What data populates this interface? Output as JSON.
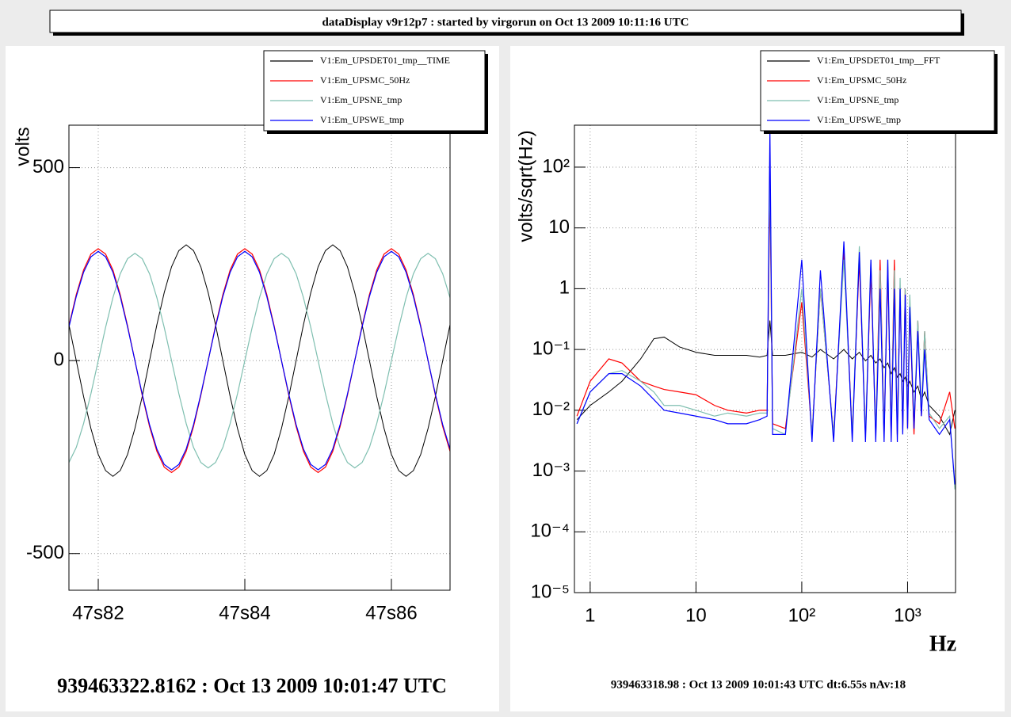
{
  "header": {
    "title": "dataDisplay v9r12p7 : started by virgorun on Oct 13 2009 10:11:16 UTC"
  },
  "chart_data": [
    {
      "type": "line",
      "ylabel": "volts",
      "footer": "939463322.8162 : Oct 13 2009 10:01:47 UTC",
      "xlim": [
        47.816,
        47.868
      ],
      "ylim": [
        -595,
        610
      ],
      "grid": true,
      "legend": "top-right",
      "xticks": [
        {
          "value": 47.82,
          "label": "47s82"
        },
        {
          "value": 47.84,
          "label": "47s84"
        },
        {
          "value": 47.86,
          "label": "47s86"
        }
      ],
      "yticks": [
        -500,
        0,
        500
      ],
      "x": [
        47.816,
        47.817,
        47.818,
        47.819,
        47.82,
        47.821,
        47.822,
        47.823,
        47.824,
        47.825,
        47.826,
        47.827,
        47.828,
        47.829,
        47.83,
        47.831,
        47.832,
        47.833,
        47.834,
        47.835,
        47.836,
        47.837,
        47.838,
        47.839,
        47.84,
        47.841,
        47.842,
        47.843,
        47.844,
        47.845,
        47.846,
        47.847,
        47.848,
        47.849,
        47.85,
        47.851,
        47.852,
        47.853,
        47.854,
        47.855,
        47.856,
        47.857,
        47.858,
        47.859,
        47.86,
        47.861,
        47.862,
        47.863,
        47.864,
        47.865,
        47.866,
        47.867,
        47.868
      ],
      "series": [
        {
          "name": "V1:Em_UPSDET01_tmp__TIME",
          "color": "#000000",
          "values": [
            93,
            0,
            -93,
            -176,
            -243,
            -285,
            -300,
            -285,
            -243,
            -176,
            -93,
            0,
            93,
            176,
            243,
            285,
            300,
            285,
            243,
            176,
            93,
            0,
            -93,
            -176,
            -243,
            -285,
            -300,
            -285,
            -243,
            -176,
            -93,
            0,
            93,
            176,
            243,
            285,
            300,
            285,
            243,
            176,
            93,
            0,
            -93,
            -176,
            -243,
            -285,
            -300,
            -285,
            -243,
            -176,
            -93,
            0,
            93
          ]
        },
        {
          "name": "V1:Em_UPSMC_50Hz",
          "color": "#ff0000",
          "values": [
            90,
            171,
            235,
            276,
            290,
            276,
            235,
            171,
            90,
            0,
            -90,
            -171,
            -235,
            -276,
            -290,
            -276,
            -235,
            -171,
            -90,
            0,
            90,
            171,
            235,
            276,
            290,
            276,
            235,
            171,
            90,
            0,
            -90,
            -171,
            -235,
            -276,
            -290,
            -276,
            -235,
            -171,
            -90,
            0,
            90,
            171,
            235,
            276,
            290,
            276,
            235,
            171,
            90,
            0,
            -90,
            -171,
            -235
          ]
        },
        {
          "name": "V1:Em_UPSNE_tmp",
          "color": "#7fbfb0",
          "values": [
            -264,
            -225,
            -163,
            -86,
            0,
            86,
            163,
            225,
            264,
            278,
            264,
            225,
            163,
            86,
            0,
            -86,
            -163,
            -225,
            -264,
            -278,
            -264,
            -225,
            -163,
            -86,
            0,
            86,
            163,
            225,
            264,
            278,
            264,
            225,
            163,
            86,
            0,
            -86,
            -163,
            -225,
            -264,
            -278,
            -264,
            -225,
            -163,
            -86,
            0,
            86,
            163,
            225,
            264,
            278,
            264,
            225,
            163
          ]
        },
        {
          "name": "V1:Em_UPSWE_tmp",
          "color": "#0000ff",
          "values": [
            87,
            166,
            229,
            269,
            283,
            269,
            229,
            166,
            87,
            0,
            -87,
            -166,
            -229,
            -269,
            -283,
            -269,
            -229,
            -166,
            -87,
            0,
            87,
            166,
            229,
            269,
            283,
            269,
            229,
            166,
            87,
            0,
            -87,
            -166,
            -229,
            -269,
            -283,
            -269,
            -229,
            -166,
            -87,
            0,
            87,
            166,
            229,
            269,
            283,
            269,
            229,
            166,
            87,
            0,
            -87,
            -166,
            -229
          ]
        }
      ]
    },
    {
      "type": "line",
      "ylabel": "volts/sqrt(Hz)",
      "xlabel": "Hz",
      "footer": "939463318.98 : Oct 13 2009 10:01:43 UTC dt:6.55s nAv:18",
      "xlog": true,
      "ylog": true,
      "grid": true,
      "legend": "top-right",
      "xlim": [
        0.71,
        2840
      ],
      "ylim": [
        1e-05,
        490
      ],
      "xticks": [
        1,
        10,
        {
          "value": 100,
          "label": "10²"
        },
        {
          "value": 1000,
          "label": "10³"
        }
      ],
      "yticks": [
        {
          "value": 1e-05,
          "label": "10⁻⁵"
        },
        {
          "value": 0.0001,
          "label": "10⁻⁴"
        },
        {
          "value": 0.001,
          "label": "10⁻³"
        },
        {
          "value": 0.01,
          "label": "10⁻²"
        },
        {
          "value": 0.1,
          "label": "10⁻¹"
        },
        1,
        10,
        {
          "value": 100,
          "label": "10²"
        }
      ],
      "x": [
        0.75,
        1,
        1.5,
        2,
        3,
        4,
        5,
        7,
        10,
        15,
        20,
        30,
        40,
        47,
        50,
        53,
        70,
        100,
        125,
        150,
        200,
        250,
        300,
        350,
        400,
        450,
        500,
        550,
        600,
        650,
        700,
        750,
        800,
        850,
        900,
        950,
        1000,
        1050,
        1150,
        1250,
        1350,
        1450,
        1600,
        2000,
        2500,
        2800
      ],
      "series": [
        {
          "name": "V1:Em_UPSDET01_tmp__FFT",
          "color": "#000000",
          "values": [
            0.007,
            0.012,
            0.02,
            0.03,
            0.07,
            0.15,
            0.16,
            0.11,
            0.09,
            0.08,
            0.08,
            0.08,
            0.075,
            0.08,
            0.3,
            0.08,
            0.08,
            0.09,
            0.075,
            0.1,
            0.07,
            0.1,
            0.07,
            0.09,
            0.065,
            0.08,
            0.06,
            0.07,
            0.05,
            0.06,
            0.04,
            0.05,
            0.035,
            0.04,
            0.03,
            0.035,
            0.025,
            0.03,
            0.02,
            0.025,
            0.015,
            0.02,
            0.012,
            0.008,
            0.004,
            0.01
          ]
        },
        {
          "name": "V1:Em_UPSMC_50Hz",
          "color": "#ff0000",
          "values": [
            0.008,
            0.03,
            0.07,
            0.06,
            0.03,
            0.025,
            0.022,
            0.02,
            0.018,
            0.012,
            0.01,
            0.009,
            0.01,
            0.01,
            50,
            0.006,
            0.005,
            0.6,
            0.004,
            1,
            0.004,
            4,
            0.004,
            3,
            0.004,
            2,
            0.004,
            3,
            0.004,
            2,
            0.004,
            3,
            0.004,
            1,
            0.005,
            1,
            0.005,
            0.5,
            0.004,
            0.3,
            0.008,
            0.2,
            0.008,
            0.006,
            0.02,
            0.005
          ]
        },
        {
          "name": "V1:Em_UPSNE_tmp",
          "color": "#7fbfb0",
          "values": [
            0.006,
            0.02,
            0.04,
            0.045,
            0.03,
            0.02,
            0.012,
            0.012,
            0.01,
            0.008,
            0.009,
            0.008,
            0.009,
            0.009,
            100,
            0.005,
            0.004,
            1,
            0.004,
            1,
            0.004,
            3,
            0.004,
            5,
            0.004,
            3,
            0.004,
            2,
            0.004,
            3,
            0.004,
            2,
            0.004,
            1.5,
            0.005,
            1,
            0.006,
            0.8,
            0.006,
            0.3,
            0.01,
            0.2,
            0.009,
            0.005,
            0.008,
            0.0005
          ]
        },
        {
          "name": "V1:Em_UPSWE_tmp",
          "color": "#0000ff",
          "values": [
            0.006,
            0.02,
            0.04,
            0.04,
            0.025,
            0.015,
            0.01,
            0.009,
            0.008,
            0.007,
            0.006,
            0.006,
            0.007,
            0.008,
            400,
            0.004,
            0.004,
            3,
            0.003,
            2,
            0.003,
            6,
            0.003,
            4,
            0.003,
            3,
            0.003,
            1,
            0.003,
            3,
            0.003,
            1,
            0.003,
            1,
            0.004,
            0.8,
            0.005,
            0.5,
            0.005,
            0.2,
            0.008,
            0.1,
            0.007,
            0.004,
            0.007,
            0.0006
          ]
        }
      ]
    }
  ]
}
